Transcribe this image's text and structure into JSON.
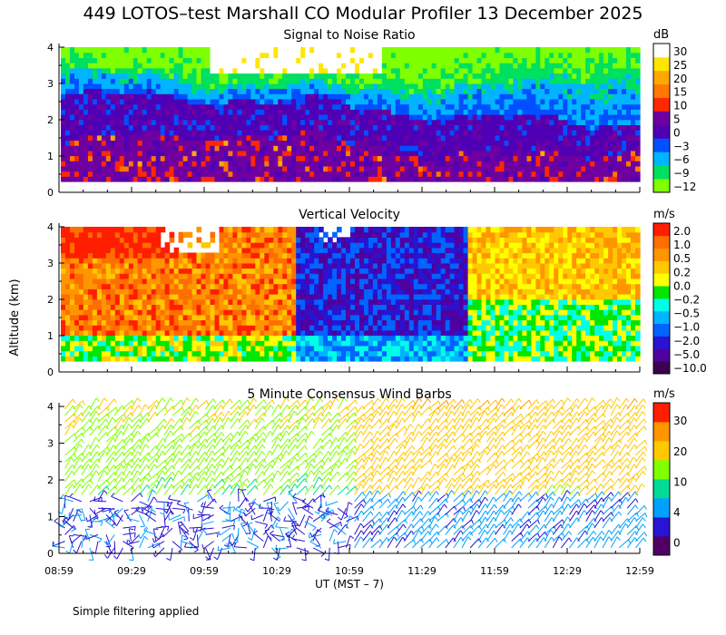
{
  "title": "449 LOTOS–test Marshall CO Modular Profiler 13 December 2025",
  "footnote": "Simple filtering applied",
  "y_axis_label": "Altitude (km)",
  "x_axis_label": "UT  (MST – 7)",
  "x_ticks": [
    "08:59",
    "09:29",
    "09:59",
    "10:29",
    "10:59",
    "11:29",
    "11:59",
    "12:29",
    "12:59"
  ],
  "y_ticks": [
    "0",
    "1",
    "2",
    "3",
    "4"
  ],
  "colors": {
    "snr": [
      "#80ff00",
      "#00e060",
      "#00b4ff",
      "#0050ff",
      "#5000b4",
      "#6e00a0",
      "#ff2800",
      "#ff7800",
      "#ffa800",
      "#ffe600",
      "#ffffff"
    ],
    "velocity": [
      "#3c0050",
      "#5000a0",
      "#2814d2",
      "#0064ff",
      "#00b4ff",
      "#00ffe6",
      "#00e600",
      "#ffff00",
      "#ffc800",
      "#ff9600",
      "#ff6e00",
      "#ff1e00"
    ],
    "wind": [
      "#500064",
      "#2814d2",
      "#00a0ff",
      "#00dc96",
      "#80ff00",
      "#ffc800",
      "#ff9600",
      "#ff1e00"
    ]
  },
  "chart_data": [
    {
      "type": "heatmap",
      "title": "Signal to Noise Ratio",
      "units": "dB",
      "xlabel": "",
      "ylabel": "Altitude (km)",
      "x_range": [
        "08:59",
        "12:59"
      ],
      "ylim": [
        0,
        4.1
      ],
      "colorbar_ticks": [
        "30",
        "25",
        "20",
        "15",
        "10",
        "5",
        "0",
        "−3",
        "−6",
        "−9",
        "−12"
      ],
      "profile": [
        {
          "x_range_label": "08:59-09:50",
          "layers": [
            {
              "alt_km": [
                0.3,
                1.3
              ],
              "value_db": 0
            },
            {
              "alt_km": [
                1.3,
                2.5
              ],
              "value_db": 5
            },
            {
              "alt_km": [
                2.5,
                3.4
              ],
              "value_db": -3
            },
            {
              "alt_km": [
                3.4,
                4.1
              ],
              "value_db": -9
            }
          ]
        },
        {
          "x_range_label": "09:50-11:00",
          "layers": [
            {
              "alt_km": [
                0.3,
                1.5
              ],
              "value_db": 2
            },
            {
              "alt_km": [
                1.5,
                2.6
              ],
              "value_db": 5
            },
            {
              "alt_km": [
                2.6,
                3.3
              ],
              "value_db": -6
            },
            {
              "alt_km": [
                3.3,
                4.1
              ],
              "value_db": 30
            }
          ]
        },
        {
          "x_range_label": "11:00-12:59",
          "layers": [
            {
              "alt_km": [
                0.3,
                1.6
              ],
              "value_db": 0
            },
            {
              "alt_km": [
                1.6,
                2.4
              ],
              "value_db": 5
            },
            {
              "alt_km": [
                2.4,
                3.4
              ],
              "value_db": -6
            },
            {
              "alt_km": [
                3.4,
                4.1
              ],
              "value_db": -9
            }
          ]
        }
      ]
    },
    {
      "type": "heatmap",
      "title": "Vertical Velocity",
      "units": "m/s",
      "xlabel": "",
      "ylabel": "Altitude (km)",
      "x_range": [
        "08:59",
        "12:59"
      ],
      "ylim": [
        0,
        4.1
      ],
      "colorbar_ticks": [
        "2.0",
        "1.0",
        "0.5",
        "0.2",
        "0.0",
        "−0.2",
        "−0.5",
        "−1.0",
        "−2.0",
        "−5.0",
        "−10.0"
      ],
      "profile": [
        {
          "x_range_label": "08:59-10:31",
          "dominant_value_ms": 0.5
        },
        {
          "x_range_label": "10:31-11:50",
          "dominant_value_ms": -2.0
        },
        {
          "x_range_label": "11:50-12:59",
          "dominant_value_ms": 0.2
        }
      ]
    },
    {
      "type": "scatter",
      "title": "5 Minute Consensus Wind Barbs",
      "units": "m/s",
      "xlabel": "UT  (MST – 7)",
      "ylabel": "Altitude (km)",
      "x_range": [
        "08:59",
        "12:59"
      ],
      "ylim": [
        0,
        4.1
      ],
      "colorbar_ticks": [
        "30",
        "20",
        "10",
        "4",
        "0"
      ],
      "profile": [
        {
          "x_range_label": "08:59-11:00",
          "low_alt_speed_ms": 3,
          "high_alt_speed_ms": 10
        },
        {
          "x_range_label": "11:00-12:59",
          "low_alt_speed_ms": 5,
          "high_alt_speed_ms": 18
        }
      ]
    }
  ]
}
